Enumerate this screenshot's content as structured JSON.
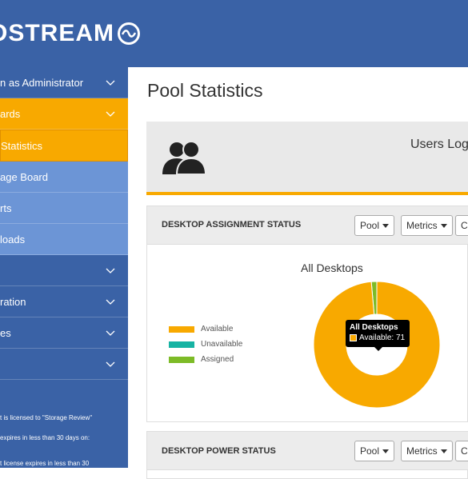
{
  "brand": {
    "logo_text": "OSTREAM"
  },
  "sidebar": {
    "items": [
      {
        "label": "n as Administrator"
      },
      {
        "label": "ards"
      },
      {
        "label": "Statistics"
      },
      {
        "label": "age Board"
      },
      {
        "label": "rts"
      },
      {
        "label": "loads"
      },
      {
        "label": ""
      },
      {
        "label": "ration"
      },
      {
        "label": "es"
      },
      {
        "label": ""
      }
    ],
    "license_lines": [
      "t is licensed to \"Storage Review\"",
      "expires in less than 30 days on:",
      "t license expires in less than 30"
    ]
  },
  "main": {
    "page_title": "Pool Statistics",
    "users_card": {
      "title": "Users Log"
    },
    "assignment_panel": {
      "title": "DESKTOP ASSIGNMENT STATUS",
      "buttons": {
        "pool": "Pool",
        "metrics": "Metrics",
        "third": "C"
      }
    },
    "power_panel": {
      "title": "DESKTOP POWER STATUS",
      "buttons": {
        "pool": "Pool",
        "metrics": "Metrics",
        "third": "C"
      }
    }
  },
  "chart_data": {
    "type": "pie",
    "title": "All Desktops",
    "series": [
      {
        "name": "Available",
        "value": 71,
        "color": "#f8a900"
      },
      {
        "name": "Unavailable",
        "value": 0,
        "color": "#17b3a3"
      },
      {
        "name": "Assigned",
        "value": 1,
        "color": "#7dbb27"
      }
    ],
    "tooltip": {
      "title": "All Desktops",
      "text": "Available: 71"
    }
  }
}
